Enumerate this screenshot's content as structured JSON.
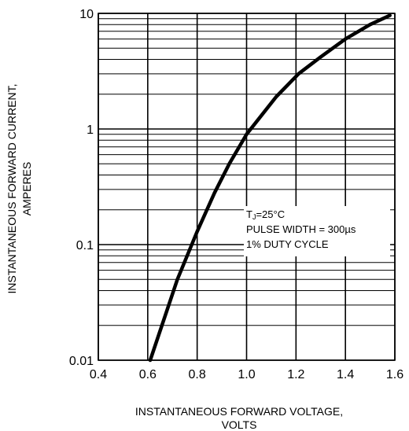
{
  "chart_data": {
    "type": "line",
    "title": "",
    "xlabel_lines": [
      "INSTANTANEOUS FORWARD VOLTAGE,",
      "VOLTS"
    ],
    "ylabel_lines": [
      "INSTANTANEOUS FORWARD CURRENT,",
      "AMPERES"
    ],
    "x_scale": "linear",
    "y_scale": "log",
    "xlim": [
      0.4,
      1.6
    ],
    "ylim": [
      0.01,
      10
    ],
    "grid": true,
    "x_ticks": [
      0.4,
      0.6,
      0.8,
      1.0,
      1.2,
      1.4,
      1.6
    ],
    "x_tick_labels": [
      "0.4",
      "0.6",
      "0.8",
      "1.0",
      "1.2",
      "1.4",
      "1.6"
    ],
    "y_ticks": [
      0.01,
      0.1,
      1,
      10
    ],
    "y_tick_labels": [
      "0.01",
      "0.1",
      "1",
      "10"
    ],
    "annotation": {
      "tj_symbol": "T",
      "tj_subscript": "J",
      "tj_value": "=25°C",
      "line2": "PULSE WIDTH = 300µs",
      "line3": "1% DUTY CYCLE"
    },
    "series": [
      {
        "x": [
          0.61,
          0.72,
          0.8,
          0.87,
          0.93,
          1.0,
          1.12,
          1.21,
          1.3,
          1.4,
          1.5,
          1.58
        ],
        "y": [
          0.01,
          0.05,
          0.13,
          0.28,
          0.5,
          0.9,
          1.9,
          3.0,
          4.2,
          6.0,
          8.0,
          9.6
        ]
      }
    ],
    "colors": {
      "curve": "#000000",
      "grid": "#000000"
    }
  }
}
